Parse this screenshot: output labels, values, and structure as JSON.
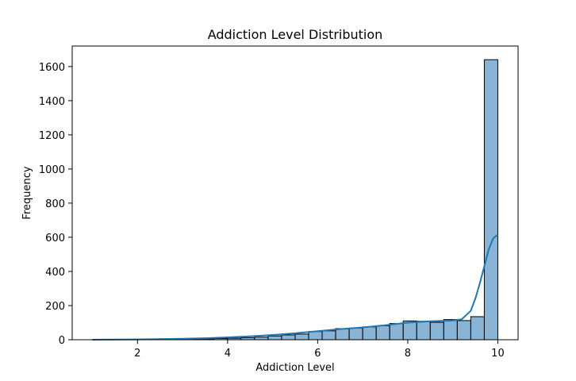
{
  "chart_data": {
    "type": "bar",
    "title": "Addiction Level Distribution",
    "xlabel": "Addiction Level",
    "ylabel": "Frequency",
    "xlim": [
      0.55,
      10.45
    ],
    "ylim": [
      0,
      1720
    ],
    "xticks": [
      2,
      4,
      6,
      8,
      10
    ],
    "yticks": [
      0,
      200,
      400,
      600,
      800,
      1000,
      1200,
      1400,
      1600
    ],
    "grid": false,
    "bar_color": "#89b4d6",
    "bar_edge_color": "#000000",
    "kde_color": "#1f77b4",
    "bins": [
      {
        "x0": 1.0,
        "x1": 1.3,
        "count": 1
      },
      {
        "x0": 1.3,
        "x1": 1.6,
        "count": 1
      },
      {
        "x0": 1.6,
        "x1": 1.9,
        "count": 1
      },
      {
        "x0": 1.9,
        "x1": 2.2,
        "count": 2
      },
      {
        "x0": 2.2,
        "x1": 2.5,
        "count": 2
      },
      {
        "x0": 2.5,
        "x1": 2.8,
        "count": 3
      },
      {
        "x0": 2.8,
        "x1": 3.1,
        "count": 3
      },
      {
        "x0": 3.1,
        "x1": 3.4,
        "count": 4
      },
      {
        "x0": 3.4,
        "x1": 3.7,
        "count": 5
      },
      {
        "x0": 3.7,
        "x1": 4.0,
        "count": 7
      },
      {
        "x0": 4.0,
        "x1": 4.3,
        "count": 9
      },
      {
        "x0": 4.3,
        "x1": 4.6,
        "count": 12
      },
      {
        "x0": 4.6,
        "x1": 4.9,
        "count": 15
      },
      {
        "x0": 4.9,
        "x1": 5.2,
        "count": 22
      },
      {
        "x0": 5.2,
        "x1": 5.5,
        "count": 28
      },
      {
        "x0": 5.5,
        "x1": 5.8,
        "count": 33
      },
      {
        "x0": 5.8,
        "x1": 6.1,
        "count": 48
      },
      {
        "x0": 6.1,
        "x1": 6.4,
        "count": 52
      },
      {
        "x0": 6.4,
        "x1": 6.7,
        "count": 65
      },
      {
        "x0": 6.7,
        "x1": 7.0,
        "count": 68
      },
      {
        "x0": 7.0,
        "x1": 7.3,
        "count": 75
      },
      {
        "x0": 7.3,
        "x1": 7.6,
        "count": 82
      },
      {
        "x0": 7.6,
        "x1": 7.9,
        "count": 95
      },
      {
        "x0": 7.9,
        "x1": 8.2,
        "count": 110
      },
      {
        "x0": 8.2,
        "x1": 8.5,
        "count": 108
      },
      {
        "x0": 8.5,
        "x1": 8.8,
        "count": 102
      },
      {
        "x0": 8.8,
        "x1": 9.1,
        "count": 118
      },
      {
        "x0": 9.1,
        "x1": 9.4,
        "count": 112
      },
      {
        "x0": 9.4,
        "x1": 9.7,
        "count": 135
      },
      {
        "x0": 9.7,
        "x1": 10.0,
        "count": 1640
      }
    ],
    "kde": {
      "x": [
        1.0,
        2.0,
        3.0,
        3.5,
        4.0,
        4.5,
        5.0,
        5.5,
        6.0,
        6.5,
        7.0,
        7.5,
        8.0,
        8.5,
        9.0,
        9.2,
        9.4,
        9.5,
        9.6,
        9.7,
        9.8,
        9.9,
        10.0
      ],
      "y": [
        0,
        2,
        6,
        9,
        14,
        20,
        28,
        38,
        50,
        62,
        72,
        85,
        100,
        108,
        112,
        120,
        170,
        240,
        330,
        430,
        530,
        595,
        615
      ]
    }
  }
}
